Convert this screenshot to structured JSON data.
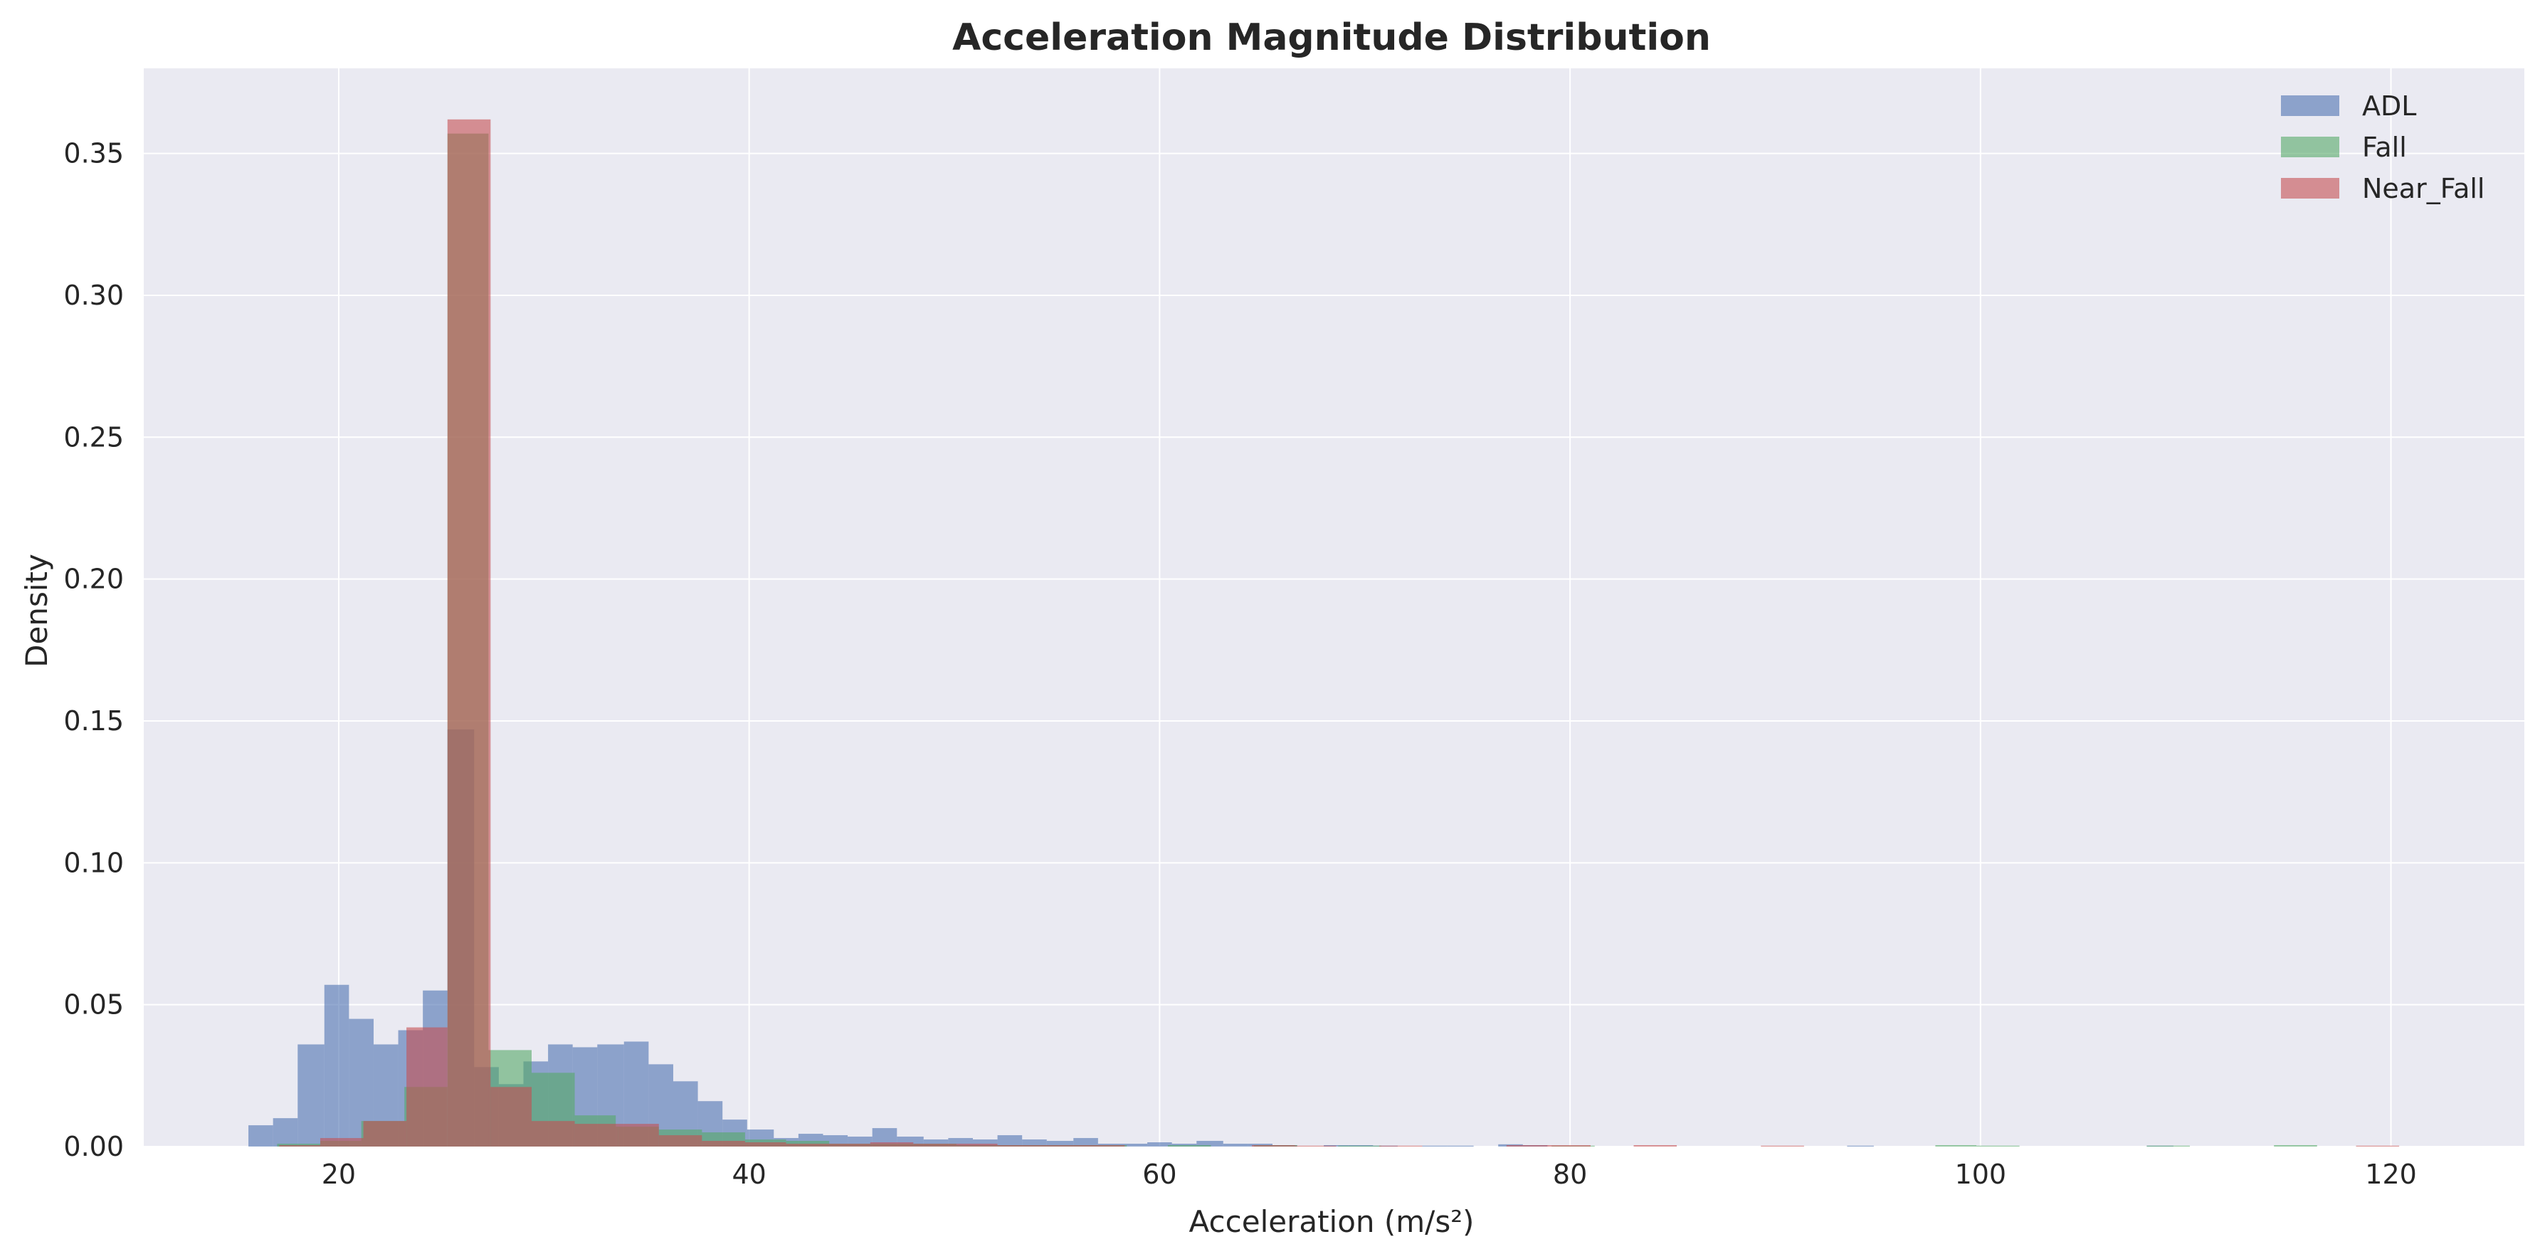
{
  "chart_data": {
    "type": "histogram",
    "title": "Acceleration Magnitude Distribution",
    "xlabel": "Acceleration (m/s²)",
    "ylabel": "Density",
    "xlim": [
      10.5,
      126.5
    ],
    "ylim": [
      0,
      0.38
    ],
    "xticks": [
      20,
      40,
      60,
      80,
      100,
      120
    ],
    "yticks": [
      0.0,
      0.05,
      0.1,
      0.15,
      0.2,
      0.25,
      0.3,
      0.35
    ],
    "grid": true,
    "legend_position": "top-right",
    "series": [
      {
        "name": "ADL",
        "color": "#4c72b0",
        "bins": [
          [
            15.6,
            16.8,
            0.0075
          ],
          [
            16.8,
            18.0,
            0.01
          ],
          [
            18.0,
            19.3,
            0.036
          ],
          [
            19.3,
            20.5,
            0.057
          ],
          [
            20.5,
            21.7,
            0.045
          ],
          [
            21.7,
            22.9,
            0.036
          ],
          [
            22.9,
            24.1,
            0.041
          ],
          [
            24.1,
            25.3,
            0.055
          ],
          [
            25.3,
            26.6,
            0.147
          ],
          [
            26.6,
            27.8,
            0.028
          ],
          [
            27.8,
            29.0,
            0.022
          ],
          [
            29.0,
            30.2,
            0.03
          ],
          [
            30.2,
            31.4,
            0.036
          ],
          [
            31.4,
            32.6,
            0.035
          ],
          [
            32.6,
            33.9,
            0.036
          ],
          [
            33.9,
            35.1,
            0.037
          ],
          [
            35.1,
            36.3,
            0.029
          ],
          [
            36.3,
            37.5,
            0.023
          ],
          [
            37.5,
            38.7,
            0.016
          ],
          [
            38.7,
            39.9,
            0.0095
          ],
          [
            39.9,
            41.2,
            0.006
          ],
          [
            41.2,
            42.4,
            0.003
          ],
          [
            42.4,
            43.6,
            0.0045
          ],
          [
            43.6,
            44.8,
            0.004
          ],
          [
            44.8,
            46.0,
            0.0035
          ],
          [
            46.0,
            47.2,
            0.0065
          ],
          [
            47.2,
            48.5,
            0.0035
          ],
          [
            48.5,
            49.7,
            0.0025
          ],
          [
            49.7,
            50.9,
            0.003
          ],
          [
            50.9,
            52.1,
            0.0025
          ],
          [
            52.1,
            53.3,
            0.004
          ],
          [
            53.3,
            54.5,
            0.0025
          ],
          [
            54.5,
            55.8,
            0.002
          ],
          [
            55.8,
            57.0,
            0.003
          ],
          [
            57.0,
            58.2,
            0.001
          ],
          [
            58.2,
            59.4,
            0.001
          ],
          [
            59.4,
            60.6,
            0.0015
          ],
          [
            60.6,
            61.8,
            0.001
          ],
          [
            61.8,
            63.1,
            0.002
          ],
          [
            63.1,
            64.3,
            0.001
          ],
          [
            64.3,
            65.5,
            0.001
          ],
          [
            65.5,
            66.7,
            0.0005
          ],
          [
            68.0,
            69.2,
            0.0005
          ],
          [
            69.2,
            70.4,
            0.0005
          ],
          [
            70.4,
            71.6,
            0.0003
          ],
          [
            72.8,
            74.0,
            0.0003
          ],
          [
            74.0,
            75.3,
            0.0003
          ],
          [
            76.5,
            77.7,
            0.0008
          ],
          [
            77.7,
            78.9,
            0.0005
          ],
          [
            93.5,
            94.8,
            0.0003
          ],
          [
            108.1,
            109.4,
            0.0003
          ]
        ]
      },
      {
        "name": "Fall",
        "color": "#55a868",
        "bins": [
          [
            17.0,
            19.1,
            0.001
          ],
          [
            19.1,
            21.1,
            0.002
          ],
          [
            21.1,
            23.2,
            0.009
          ],
          [
            23.2,
            25.3,
            0.021
          ],
          [
            25.3,
            27.3,
            0.357
          ],
          [
            27.3,
            29.4,
            0.034
          ],
          [
            29.4,
            31.5,
            0.026
          ],
          [
            31.5,
            33.5,
            0.011
          ],
          [
            33.5,
            35.6,
            0.007
          ],
          [
            35.6,
            37.7,
            0.006
          ],
          [
            37.7,
            39.8,
            0.005
          ],
          [
            39.8,
            41.8,
            0.0025
          ],
          [
            41.8,
            43.9,
            0.002
          ],
          [
            43.9,
            46.0,
            0.001
          ],
          [
            46.0,
            48.0,
            0.001
          ],
          [
            48.0,
            50.1,
            0.001
          ],
          [
            50.1,
            52.2,
            0.0005
          ],
          [
            52.2,
            54.2,
            0.0005
          ],
          [
            54.2,
            56.3,
            0.0005
          ],
          [
            56.3,
            58.4,
            0.0005
          ],
          [
            60.4,
            62.5,
            0.0005
          ],
          [
            64.6,
            66.7,
            0.0005
          ],
          [
            68.7,
            70.8,
            0.0003
          ],
          [
            79.1,
            81.2,
            0.0003
          ],
          [
            97.8,
            99.8,
            0.0005
          ],
          [
            99.8,
            101.9,
            0.0003
          ],
          [
            108.1,
            110.2,
            0.0003
          ],
          [
            114.3,
            116.4,
            0.0005
          ]
        ]
      },
      {
        "name": "Near_Fall",
        "color": "#c44e52",
        "bins": [
          [
            17.1,
            19.1,
            0.0005
          ],
          [
            19.1,
            21.2,
            0.003
          ],
          [
            21.2,
            23.3,
            0.009
          ],
          [
            23.3,
            25.3,
            0.042
          ],
          [
            25.3,
            27.4,
            0.362
          ],
          [
            27.4,
            29.4,
            0.021
          ],
          [
            29.4,
            31.5,
            0.009
          ],
          [
            31.5,
            33.6,
            0.008
          ],
          [
            33.6,
            35.6,
            0.008
          ],
          [
            35.6,
            37.7,
            0.004
          ],
          [
            37.7,
            39.8,
            0.002
          ],
          [
            39.8,
            41.8,
            0.0015
          ],
          [
            41.8,
            43.9,
            0.001
          ],
          [
            43.9,
            45.9,
            0.001
          ],
          [
            45.9,
            48.0,
            0.0015
          ],
          [
            48.0,
            50.1,
            0.001
          ],
          [
            50.1,
            52.1,
            0.001
          ],
          [
            52.1,
            54.2,
            0.0005
          ],
          [
            54.2,
            56.2,
            0.0005
          ],
          [
            56.2,
            58.3,
            0.0005
          ],
          [
            64.5,
            66.6,
            0.0005
          ],
          [
            66.6,
            68.6,
            0.0003
          ],
          [
            70.7,
            72.8,
            0.0003
          ],
          [
            76.9,
            79.0,
            0.0005
          ],
          [
            79.0,
            81.0,
            0.0005
          ],
          [
            83.1,
            85.2,
            0.0005
          ],
          [
            89.3,
            91.4,
            0.0003
          ],
          [
            118.3,
            120.4,
            0.0003
          ]
        ]
      }
    ]
  }
}
